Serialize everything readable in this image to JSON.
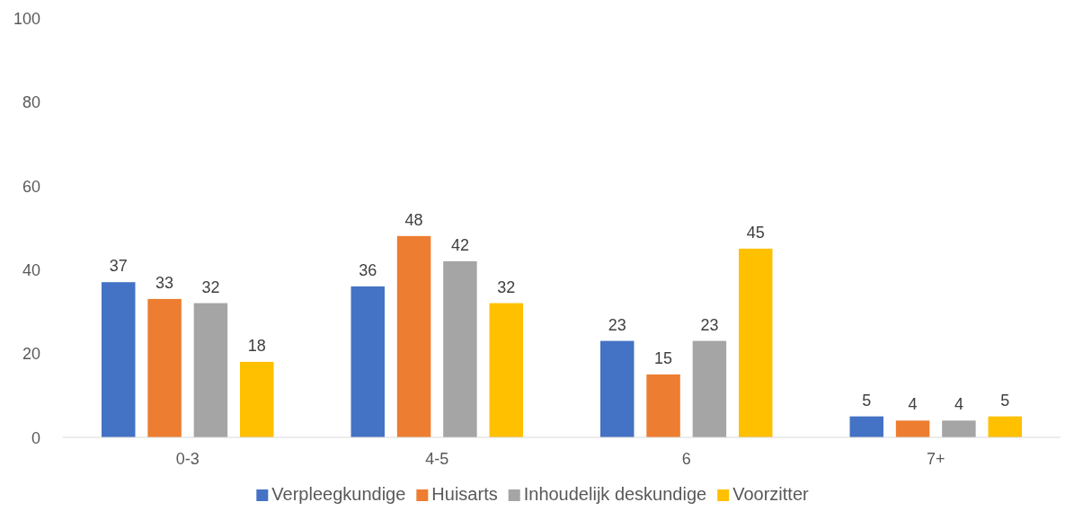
{
  "chart_data": {
    "type": "bar",
    "categories": [
      "0-3",
      "4-5",
      "6",
      "7+"
    ],
    "series": [
      {
        "name": "Verpleegkundige",
        "color": "#4472c4",
        "values": [
          37,
          36,
          23,
          5
        ]
      },
      {
        "name": "Huisarts",
        "color": "#ed7d31",
        "values": [
          33,
          48,
          15,
          4
        ]
      },
      {
        "name": "Inhoudelijk deskundige",
        "color": "#a5a5a5",
        "values": [
          32,
          42,
          23,
          4
        ]
      },
      {
        "name": "Voorzitter",
        "color": "#ffc000",
        "values": [
          18,
          32,
          45,
          5
        ]
      }
    ],
    "ylim": [
      0,
      100
    ],
    "yticks": [
      0,
      20,
      40,
      60,
      80,
      100
    ],
    "grid": false,
    "legend": "bottom",
    "data_labels": true
  }
}
